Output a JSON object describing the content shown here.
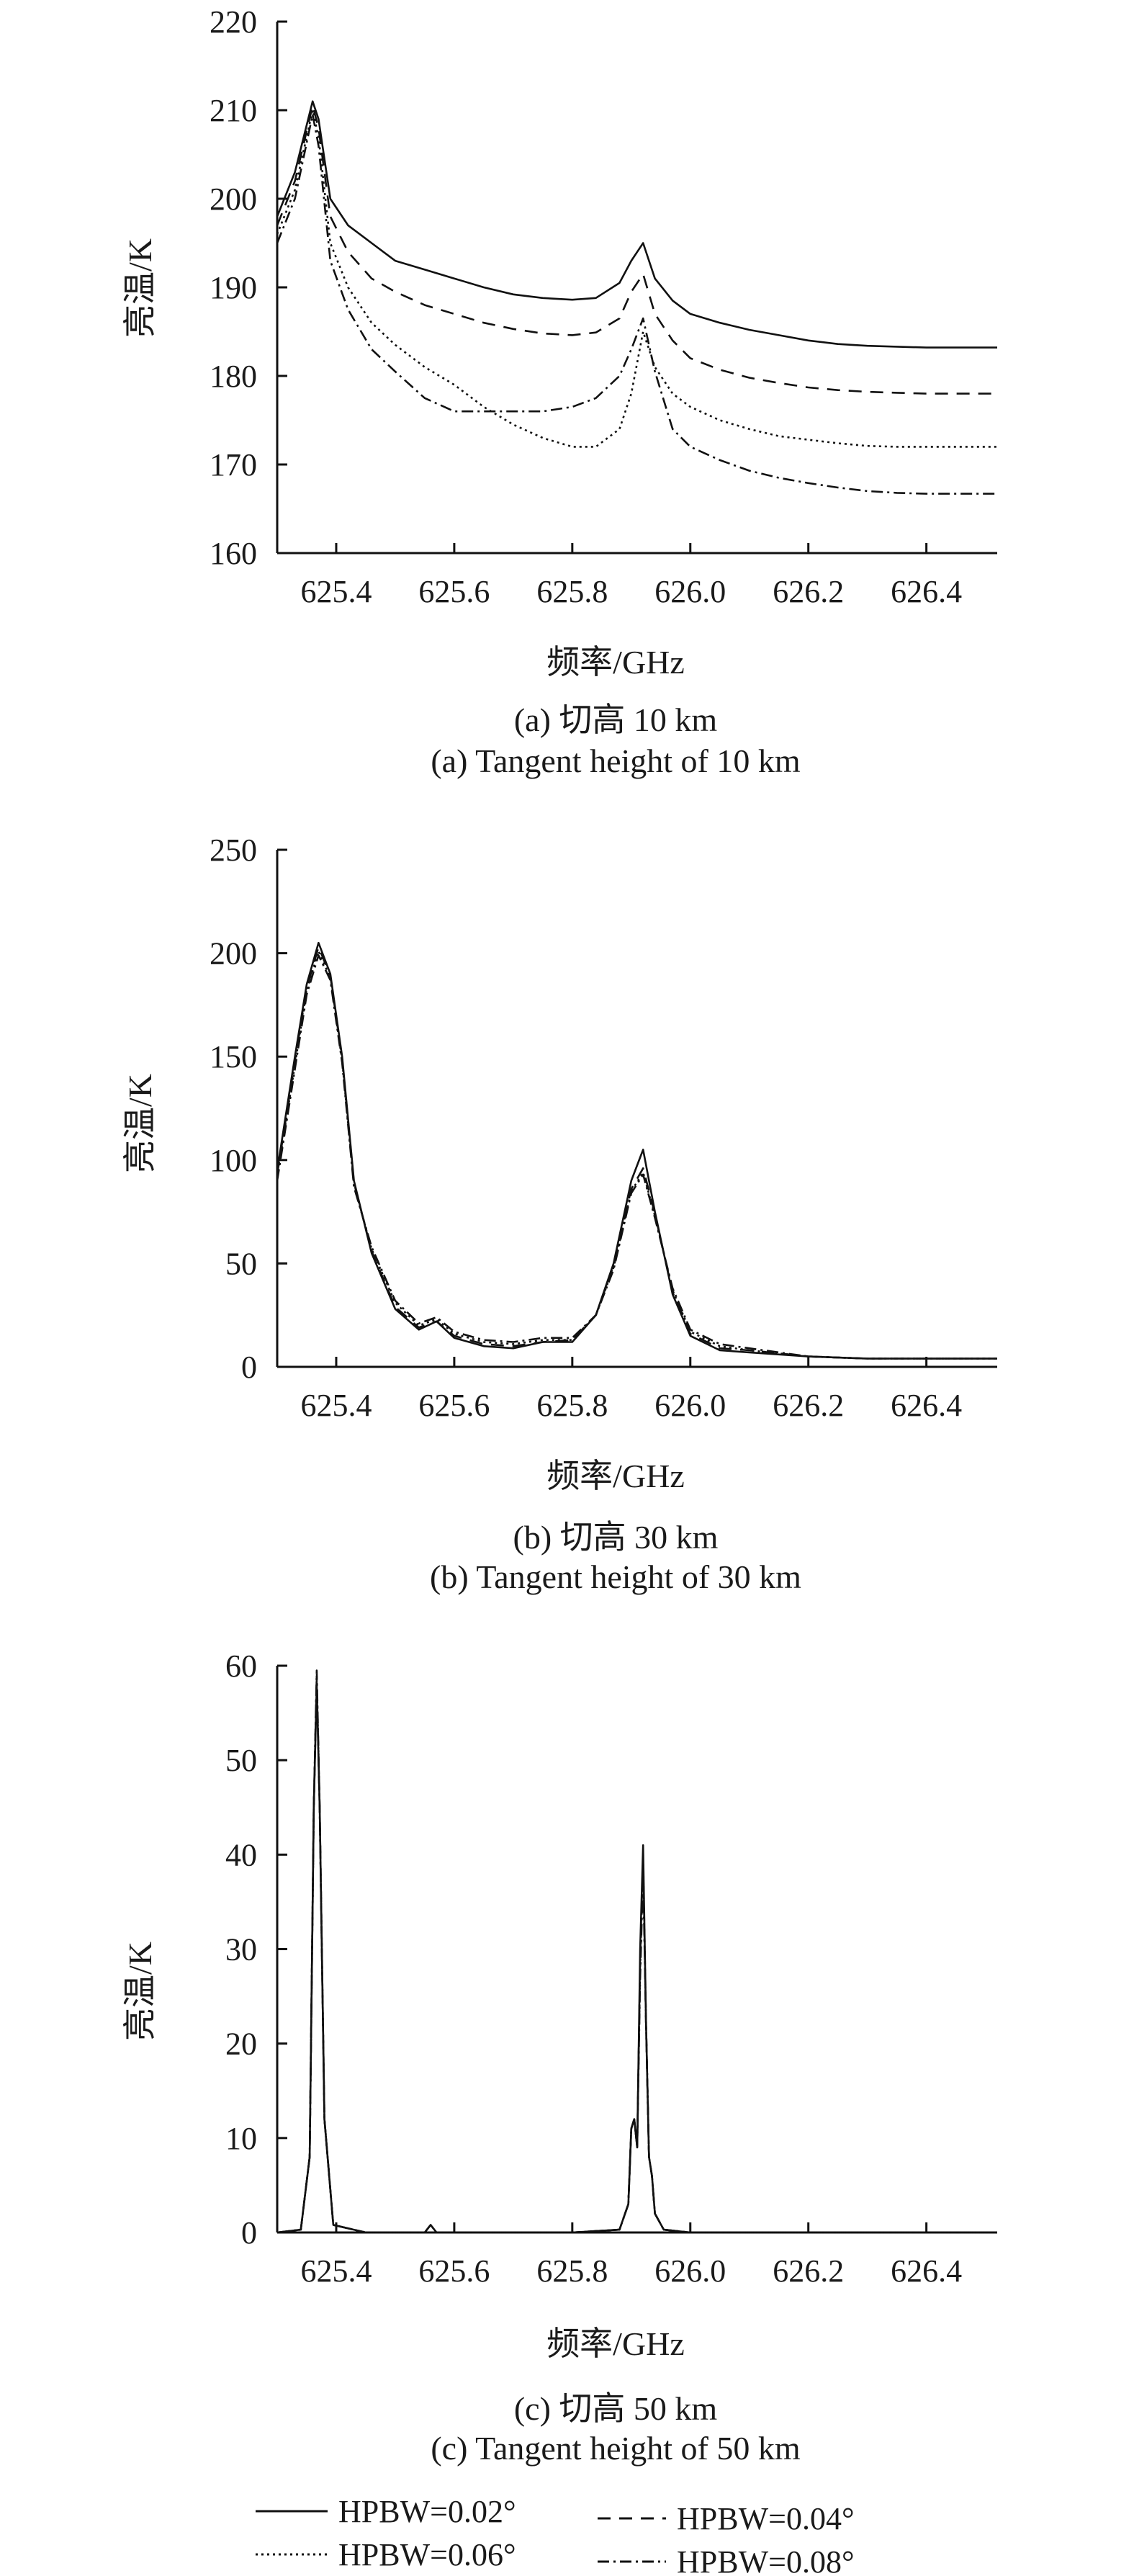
{
  "chart_data": [
    {
      "type": "line",
      "id": "a",
      "caption_cn": "(a) 切高 10 km",
      "caption_en": "(a) Tangent height of 10 km",
      "xlabel": "频率/GHz",
      "ylabel": "亮温/K",
      "xlim": [
        625.3,
        626.52
      ],
      "ylim": [
        160,
        220
      ],
      "xticks": [
        "625.4",
        "625.6",
        "625.8",
        "626.0",
        "626.2",
        "626.4"
      ],
      "xtick_values": [
        625.4,
        625.6,
        625.8,
        626.0,
        626.2,
        626.4
      ],
      "yticks": [
        "160",
        "170",
        "180",
        "190",
        "200",
        "210",
        "220"
      ],
      "ytick_values": [
        160,
        170,
        180,
        190,
        200,
        210,
        220
      ],
      "x": [
        625.3,
        625.33,
        625.36,
        625.37,
        625.39,
        625.42,
        625.46,
        625.5,
        625.55,
        625.6,
        625.65,
        625.7,
        625.75,
        625.8,
        625.84,
        625.88,
        625.9,
        625.92,
        625.94,
        625.97,
        626.0,
        626.05,
        626.1,
        626.15,
        626.2,
        626.25,
        626.3,
        626.35,
        626.4,
        626.45,
        626.52
      ],
      "series": [
        {
          "name": "HPBW=0.02°",
          "style": "solid",
          "values": [
            198,
            203,
            211,
            209,
            200,
            197,
            195,
            193,
            192,
            191,
            190,
            189.2,
            188.8,
            188.6,
            188.8,
            190.5,
            193,
            195,
            191,
            188.5,
            187,
            186,
            185.2,
            184.6,
            184,
            183.6,
            183.4,
            183.3,
            183.2,
            183.2,
            183.2
          ]
        },
        {
          "name": "HPBW=0.04°",
          "style": "dash",
          "values": [
            197,
            202,
            210.5,
            208,
            198,
            194,
            191,
            189.5,
            188,
            187,
            186,
            185.3,
            184.8,
            184.6,
            184.9,
            186.5,
            189.5,
            191.5,
            187,
            184,
            182,
            180.7,
            179.8,
            179.2,
            178.7,
            178.4,
            178.2,
            178.1,
            178,
            178,
            178
          ]
        },
        {
          "name": "HPBW=0.06°",
          "style": "dot",
          "values": [
            196,
            201,
            210,
            207,
            195,
            190,
            186,
            183.5,
            181,
            179,
            176.5,
            174.5,
            173,
            172,
            172,
            174,
            178,
            185,
            181,
            178,
            176.5,
            175,
            174,
            173.2,
            172.8,
            172.4,
            172.1,
            172,
            172,
            172,
            172
          ]
        },
        {
          "name": "HPBW=0.08°",
          "style": "dashdot",
          "values": [
            195,
            200,
            209.5,
            206,
            193,
            187.5,
            183,
            180.5,
            177.5,
            176,
            176,
            176,
            176,
            176.5,
            177.5,
            180,
            183,
            186.5,
            180.5,
            174,
            172,
            170.5,
            169.3,
            168.5,
            167.9,
            167.4,
            167,
            166.8,
            166.7,
            166.7,
            166.7
          ]
        }
      ]
    },
    {
      "type": "line",
      "id": "b",
      "caption_cn": "(b) 切高 30 km",
      "caption_en": "(b) Tangent height of 30 km",
      "xlabel": "频率/GHz",
      "ylabel": "亮温/K",
      "xlim": [
        625.3,
        626.52
      ],
      "ylim": [
        0,
        250
      ],
      "xticks": [
        "625.4",
        "625.6",
        "625.8",
        "626.0",
        "626.2",
        "626.4"
      ],
      "xtick_values": [
        625.4,
        625.6,
        625.8,
        626.0,
        626.2,
        626.4
      ],
      "yticks": [
        "0",
        "50",
        "100",
        "150",
        "200",
        "250"
      ],
      "ytick_values": [
        0,
        50,
        100,
        150,
        200,
        250
      ],
      "x": [
        625.3,
        625.33,
        625.35,
        625.37,
        625.39,
        625.41,
        625.43,
        625.46,
        625.5,
        625.54,
        625.57,
        625.6,
        625.65,
        625.7,
        625.75,
        625.8,
        625.84,
        625.87,
        625.9,
        625.92,
        625.94,
        625.97,
        626.0,
        626.05,
        626.1,
        626.2,
        626.3,
        626.4,
        626.52
      ],
      "series": [
        {
          "name": "HPBW=0.02°",
          "style": "solid",
          "values": [
            95,
            150,
            185,
            205,
            190,
            150,
            90,
            55,
            28,
            18,
            22,
            14,
            10,
            9,
            12,
            12,
            25,
            50,
            90,
            105,
            75,
            35,
            15,
            8,
            7,
            5,
            4,
            4,
            4
          ]
        },
        {
          "name": "HPBW=0.04°",
          "style": "dash",
          "values": [
            93,
            148,
            183,
            203,
            189,
            149,
            89,
            56,
            29,
            19,
            22,
            15,
            11,
            10,
            12,
            13,
            25,
            49,
            86,
            96,
            74,
            36,
            16,
            9,
            8,
            5,
            4,
            4,
            4
          ]
        },
        {
          "name": "HPBW=0.06°",
          "style": "dot",
          "values": [
            92,
            146,
            182,
            201,
            188,
            148,
            88,
            57,
            31,
            20,
            23,
            16,
            12,
            11,
            13,
            13,
            25,
            48,
            85,
            94,
            73,
            37,
            17,
            10,
            8,
            5,
            4,
            4,
            4
          ]
        },
        {
          "name": "HPBW=0.08°",
          "style": "dashdot",
          "values": [
            90,
            144,
            180,
            199,
            187,
            147,
            87,
            58,
            32,
            21,
            24,
            17,
            13,
            12,
            14,
            14,
            25,
            47,
            84,
            93,
            72,
            38,
            18,
            11,
            9,
            5,
            4,
            4,
            4
          ]
        }
      ]
    },
    {
      "type": "line",
      "id": "c",
      "caption_cn": "(c) 切高 50 km",
      "caption_en": "(c) Tangent height of 50 km",
      "xlabel": "频率/GHz",
      "ylabel": "亮温/K",
      "xlim": [
        625.3,
        626.52
      ],
      "ylim": [
        0,
        60
      ],
      "xticks": [
        "625.4",
        "625.6",
        "625.8",
        "626.0",
        "626.2",
        "626.4"
      ],
      "xtick_values": [
        625.4,
        625.6,
        625.8,
        626.0,
        626.2,
        626.4
      ],
      "yticks": [
        "0",
        "10",
        "20",
        "30",
        "40",
        "50",
        "60"
      ],
      "ytick_values": [
        0,
        10,
        20,
        30,
        40,
        50,
        60
      ],
      "x": [
        625.3,
        625.34,
        625.355,
        625.362,
        625.367,
        625.372,
        625.38,
        625.395,
        625.45,
        625.55,
        625.56,
        625.57,
        625.6,
        625.8,
        625.88,
        625.895,
        625.9,
        625.905,
        625.91,
        625.915,
        625.92,
        625.925,
        625.93,
        625.935,
        625.94,
        625.955,
        626.0,
        626.4,
        626.52
      ],
      "series": [
        {
          "name": "HPBW=0.02°",
          "style": "solid",
          "values": [
            0,
            0.3,
            8,
            45,
            58,
            45,
            12,
            0.8,
            0,
            0,
            0.8,
            0,
            0,
            0,
            0.3,
            3,
            11,
            12,
            9,
            30,
            41,
            22,
            8,
            6,
            2,
            0.3,
            0,
            0,
            0
          ]
        },
        {
          "name": "HPBW=0.04°",
          "style": "dash",
          "values": [
            0,
            0.3,
            8,
            45,
            58.5,
            45,
            12,
            0.8,
            0,
            0,
            0.8,
            0,
            0,
            0,
            0.3,
            3,
            11,
            12,
            9,
            29,
            40,
            22,
            8,
            6,
            2,
            0.3,
            0,
            0,
            0
          ]
        },
        {
          "name": "HPBW=0.06°",
          "style": "dot",
          "values": [
            0,
            0.3,
            8,
            45,
            59,
            45,
            12,
            0.8,
            0,
            0,
            0.8,
            0,
            0,
            0,
            0.3,
            3,
            11,
            12,
            9,
            28,
            39,
            22,
            8,
            6,
            2,
            0.3,
            0,
            0,
            0
          ]
        },
        {
          "name": "HPBW=0.08°",
          "style": "dashdot",
          "values": [
            0,
            0.3,
            8,
            45,
            59.5,
            45,
            12,
            0.8,
            0,
            0,
            0.8,
            0,
            0,
            0,
            0.3,
            3,
            11,
            12,
            9,
            27,
            38,
            22,
            8,
            6,
            2,
            0.3,
            0,
            0,
            0
          ]
        }
      ]
    }
  ],
  "legend": [
    {
      "label": "HPBW=0.02°",
      "style": "solid"
    },
    {
      "label": "HPBW=0.04°",
      "style": "dash"
    },
    {
      "label": "HPBW=0.06°",
      "style": "dot"
    },
    {
      "label": "HPBW=0.08°",
      "style": "dashdot"
    }
  ]
}
